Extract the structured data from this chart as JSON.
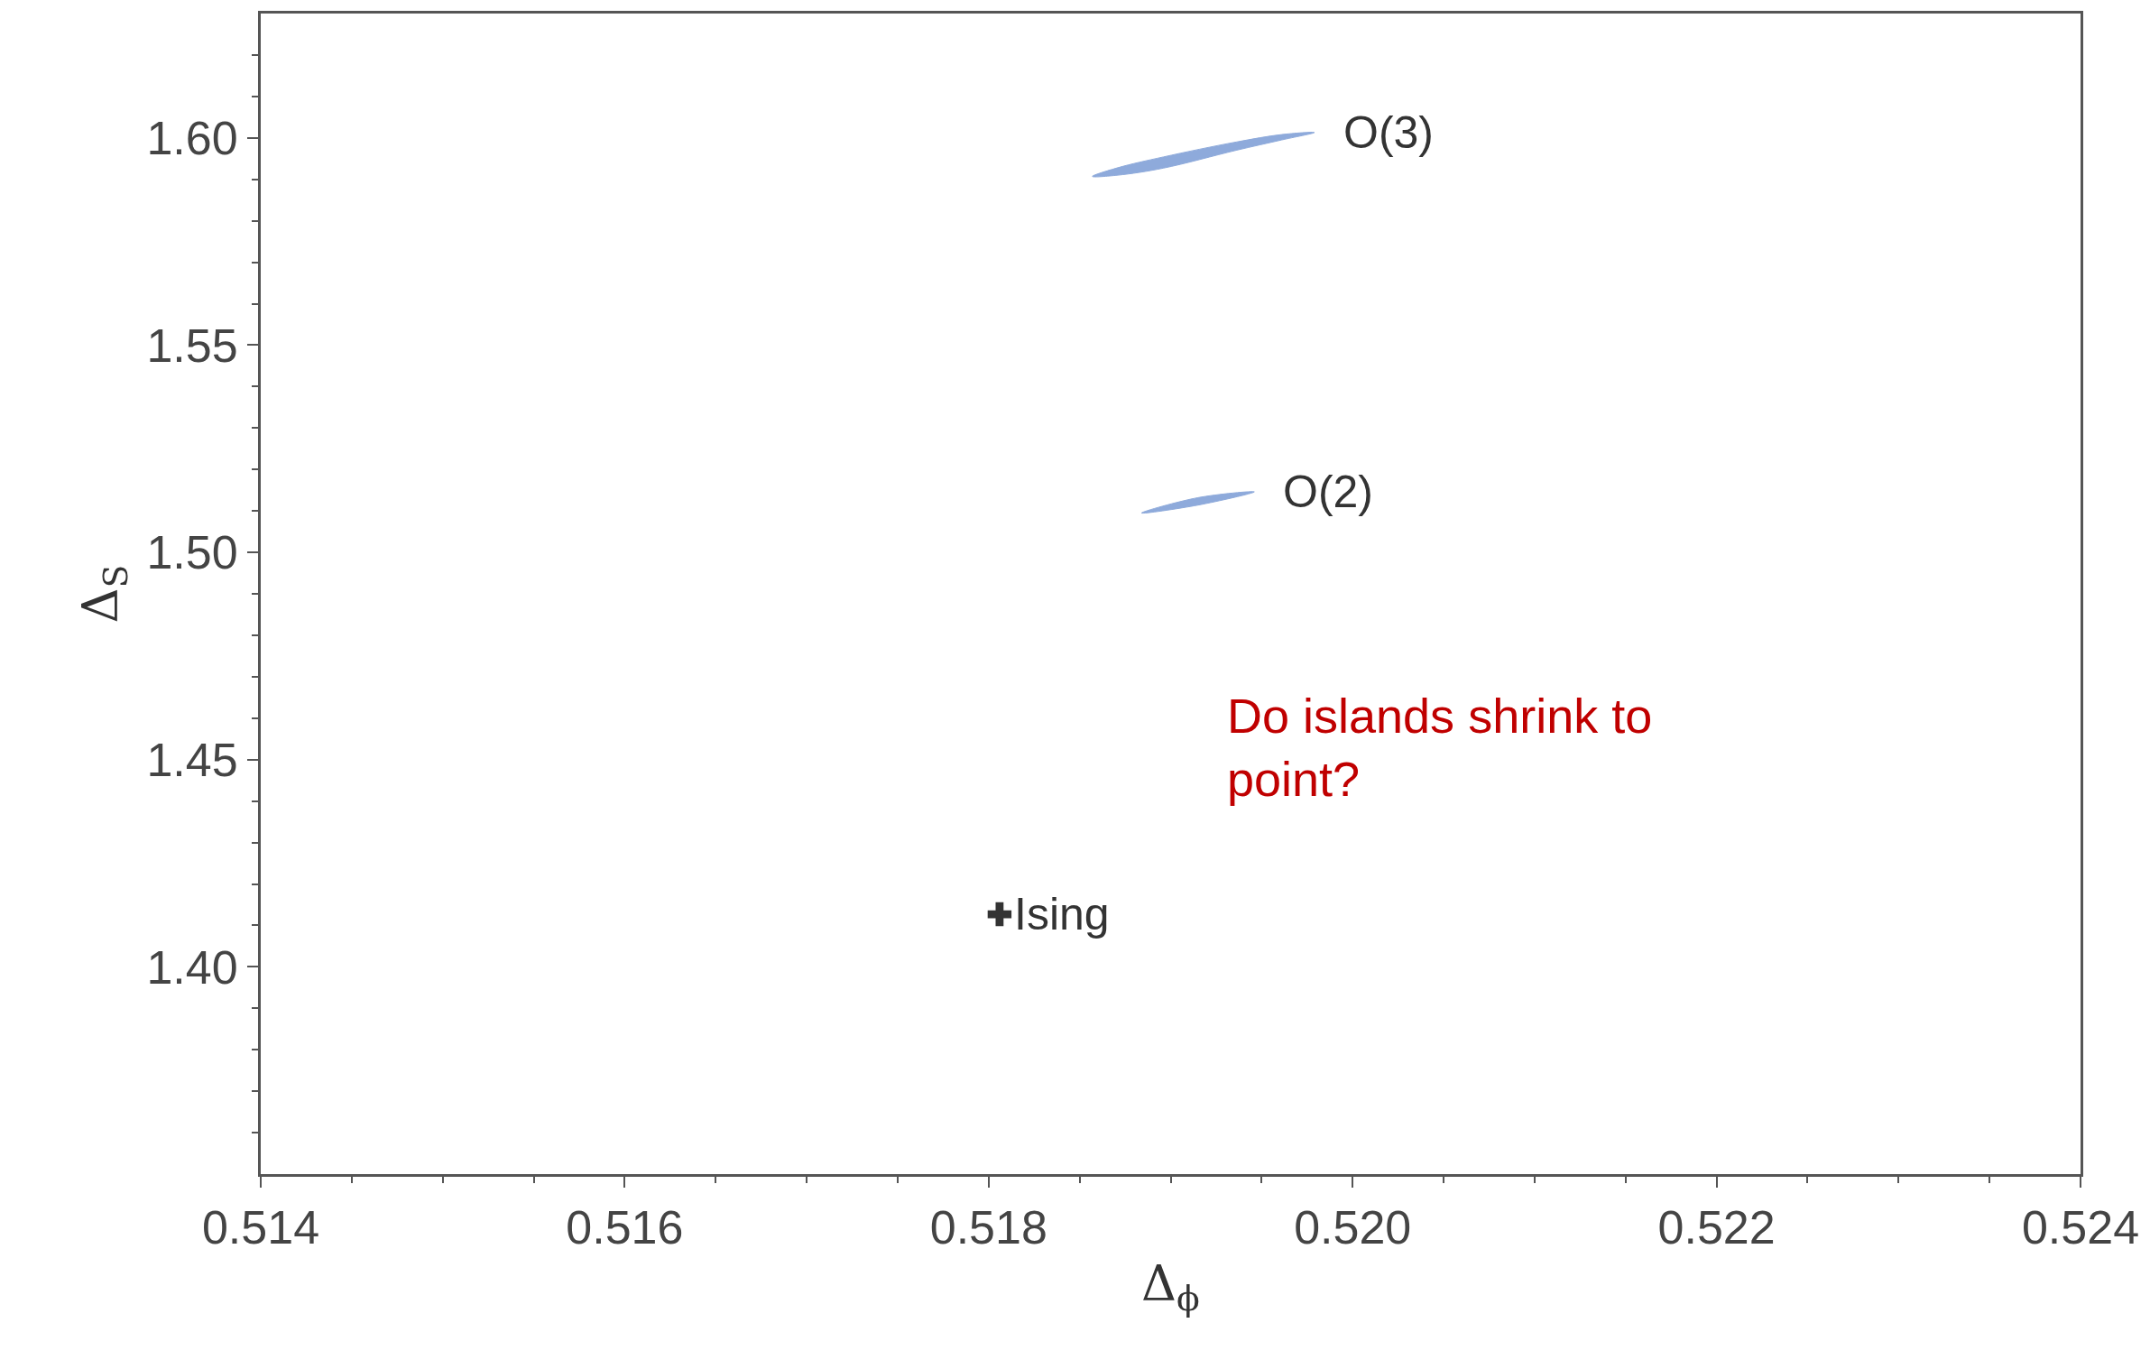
{
  "chart_data": {
    "type": "area",
    "xlabel": "Δ$_{ϕ}$",
    "ylabel": "Δ$_{S}$",
    "series": [
      {
        "name": "O(3)",
        "color": "#8eaadb",
        "x": [
          0.51857,
          0.51871,
          0.51896,
          0.51936,
          0.51961,
          0.51979,
          0.51961,
          0.51936,
          0.51896,
          0.51871,
          0.51857
        ],
        "values": [
          1.5907,
          1.5928,
          1.5954,
          1.599,
          1.6008,
          1.6013,
          1.5995,
          1.597,
          1.5927,
          1.591,
          1.5907
        ]
      },
      {
        "name": "O(2)",
        "color": "#8eaadb",
        "x": [
          0.51884,
          0.51915,
          0.51946,
          0.51915,
          0.51884
        ],
        "values": [
          1.5095,
          1.5132,
          1.5146,
          1.5114,
          1.5095
        ]
      },
      {
        "name": "Ising",
        "type": "scatter",
        "marker": "cross",
        "color": "#333333",
        "x": [
          0.51806
        ],
        "values": [
          1.4127
        ]
      }
    ],
    "annotations": [
      "Do islands shrink to point?"
    ],
    "xlim": [
      0.514,
      0.524
    ],
    "ylim": [
      1.35,
      1.63
    ],
    "xticks": [
      {
        "value": 0.514,
        "label": "0.514"
      },
      {
        "value": 0.5145,
        "label": null
      },
      {
        "value": 0.515,
        "label": null
      },
      {
        "value": 0.5155,
        "label": null
      },
      {
        "value": 0.516,
        "label": "0.516"
      },
      {
        "value": 0.5165,
        "label": null
      },
      {
        "value": 0.517,
        "label": null
      },
      {
        "value": 0.5175,
        "label": null
      },
      {
        "value": 0.518,
        "label": "0.518"
      },
      {
        "value": 0.5185,
        "label": null
      },
      {
        "value": 0.519,
        "label": null
      },
      {
        "value": 0.5195,
        "label": null
      },
      {
        "value": 0.52,
        "label": "0.520"
      },
      {
        "value": 0.5205,
        "label": null
      },
      {
        "value": 0.521,
        "label": null
      },
      {
        "value": 0.5215,
        "label": null
      },
      {
        "value": 0.522,
        "label": "0.522"
      },
      {
        "value": 0.5225,
        "label": null
      },
      {
        "value": 0.523,
        "label": null
      },
      {
        "value": 0.5235,
        "label": null
      },
      {
        "value": 0.524,
        "label": "0.524"
      }
    ],
    "yticks": [
      {
        "value": 1.36,
        "label": null
      },
      {
        "value": 1.37,
        "label": null
      },
      {
        "value": 1.38,
        "label": null
      },
      {
        "value": 1.39,
        "label": null
      },
      {
        "value": 1.4,
        "label": "1.40"
      },
      {
        "value": 1.41,
        "label": null
      },
      {
        "value": 1.42,
        "label": null
      },
      {
        "value": 1.43,
        "label": null
      },
      {
        "value": 1.44,
        "label": null
      },
      {
        "value": 1.45,
        "label": "1.45"
      },
      {
        "value": 1.46,
        "label": null
      },
      {
        "value": 1.47,
        "label": null
      },
      {
        "value": 1.48,
        "label": null
      },
      {
        "value": 1.49,
        "label": null
      },
      {
        "value": 1.5,
        "label": "1.50"
      },
      {
        "value": 1.51,
        "label": null
      },
      {
        "value": 1.52,
        "label": null
      },
      {
        "value": 1.53,
        "label": null
      },
      {
        "value": 1.54,
        "label": null
      },
      {
        "value": 1.55,
        "label": "1.55"
      },
      {
        "value": 1.56,
        "label": null
      },
      {
        "value": 1.57,
        "label": null
      },
      {
        "value": 1.58,
        "label": null
      },
      {
        "value": 1.59,
        "label": null
      },
      {
        "value": 1.6,
        "label": "1.60"
      },
      {
        "value": 1.61,
        "label": null
      },
      {
        "value": 1.62,
        "label": null
      }
    ]
  }
}
